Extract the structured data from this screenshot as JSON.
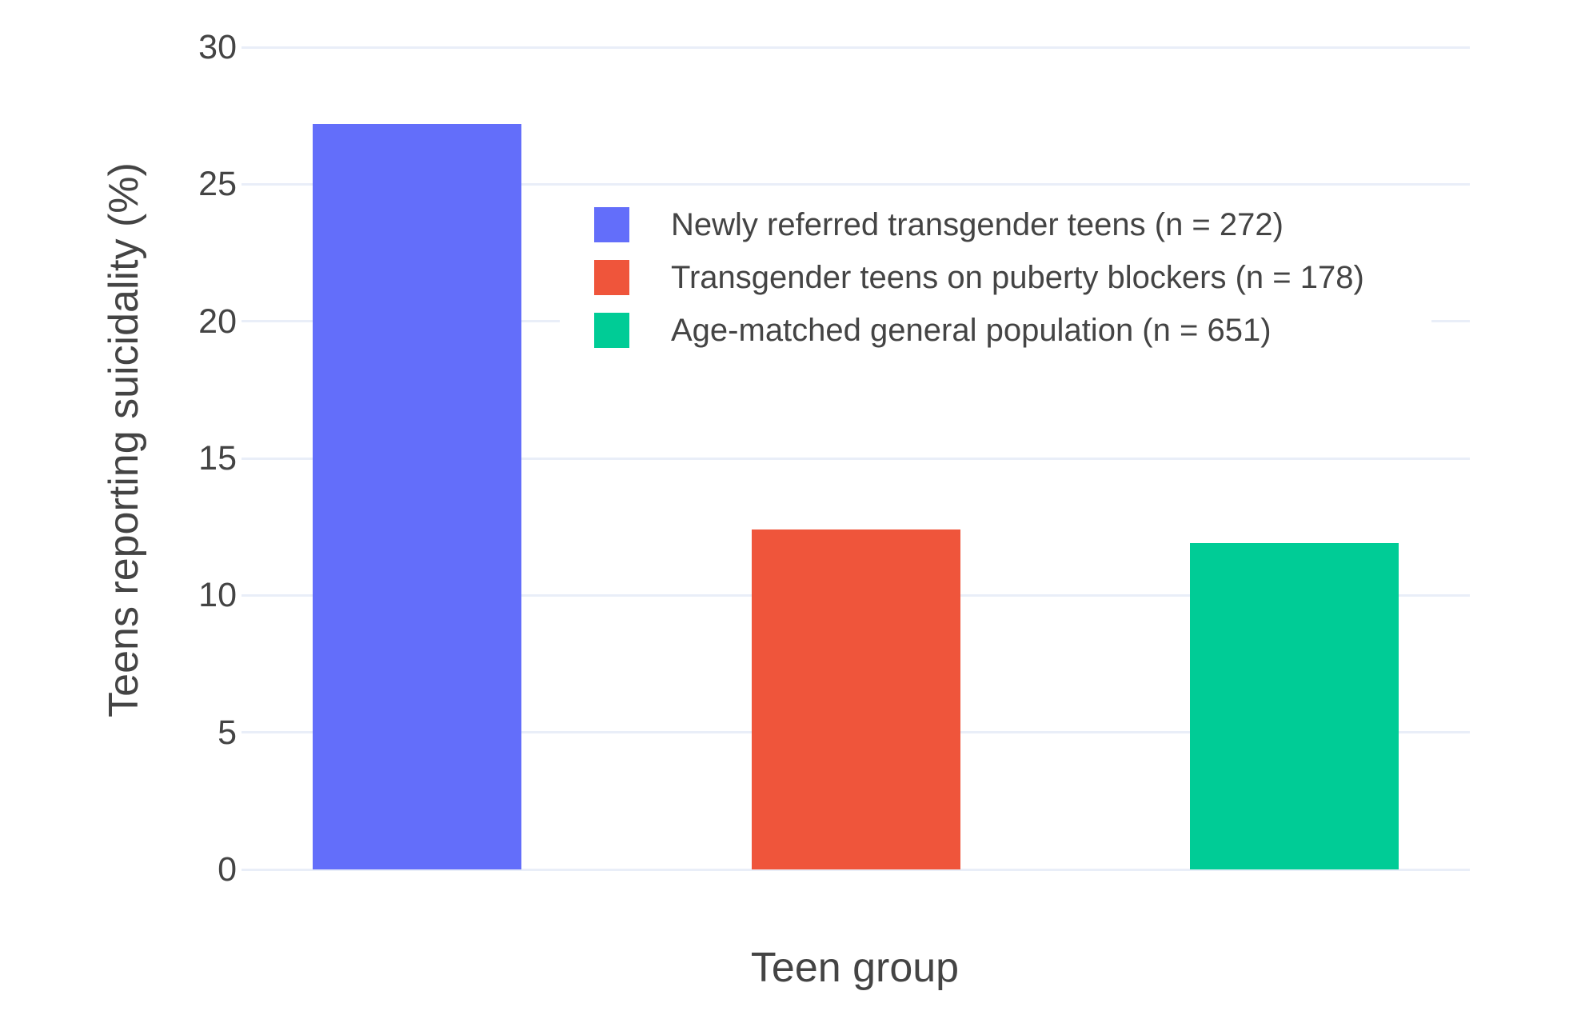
{
  "chart_data": {
    "type": "bar",
    "title": "",
    "xlabel": "Teen group",
    "ylabel": "Teens reporting suicidality (%)",
    "categories": [
      "Newly referred transgender teens (n = 272)",
      "Transgender teens on puberty blockers (n = 178)",
      "Age-matched general population (n = 651)"
    ],
    "values": [
      27.2,
      12.4,
      11.9
    ],
    "bar_colors": [
      "#636efa",
      "#ef553b",
      "#00cc96"
    ],
    "yticks": [
      0,
      5,
      10,
      15,
      20,
      25,
      30
    ],
    "ylim": [
      0,
      30
    ],
    "grid": true,
    "legend_position": "inside-top-right",
    "legend": {
      "entries": [
        {
          "label": "Newly referred transgender teens (n = 272)",
          "color": "#636efa"
        },
        {
          "label": "Transgender teens on puberty blockers (n = 178)",
          "color": "#ef553b"
        },
        {
          "label": "Age-matched general population (n = 651)",
          "color": "#00cc96"
        }
      ]
    }
  },
  "style": {
    "background": "#ffffff",
    "grid_color": "#e9eef8",
    "text_color": "#444444"
  }
}
